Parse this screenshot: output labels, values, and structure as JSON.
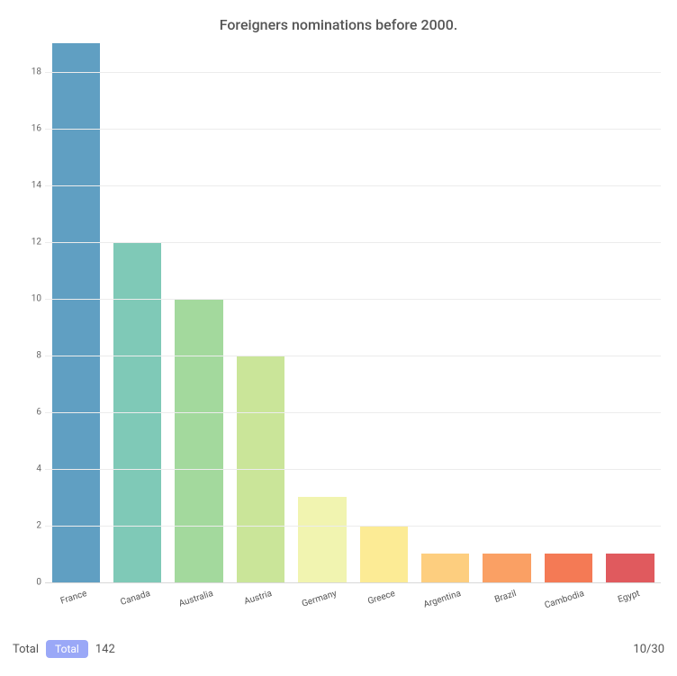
{
  "title": "Foreigners nominations before 2000.",
  "chart": {
    "type": "bar",
    "categories": [
      "France",
      "Canada",
      "Australia",
      "Austria",
      "Germany",
      "Greece",
      "Argentina",
      "Brazil",
      "Cambodia",
      "Egypt"
    ],
    "values": [
      19,
      12,
      10,
      8,
      3,
      2,
      1,
      1,
      1,
      1
    ],
    "bar_colors": [
      "#609fc2",
      "#7fc9b7",
      "#a3d99d",
      "#cae599",
      "#f1f4b0",
      "#fceb95",
      "#fdce7f",
      "#faa064",
      "#f47a55",
      "#e05a5e"
    ],
    "ylim": [
      0,
      19
    ],
    "yticks": [
      0,
      2,
      4,
      6,
      8,
      10,
      12,
      14,
      16,
      18
    ],
    "grid_color": "#ececec",
    "axis_color": "#d8d8d8",
    "background_color": "#ffffff",
    "bar_width": 0.78,
    "title_color": "#555555",
    "title_fontsize": 16,
    "tick_fontsize": 10,
    "tick_color": "#666666",
    "xlabel_rotation": -18
  },
  "footer": {
    "label": "Total",
    "badge": "Total",
    "value": "142",
    "page": "10/30",
    "badge_bg": "#9aa8f7",
    "badge_fg": "#ffffff"
  }
}
